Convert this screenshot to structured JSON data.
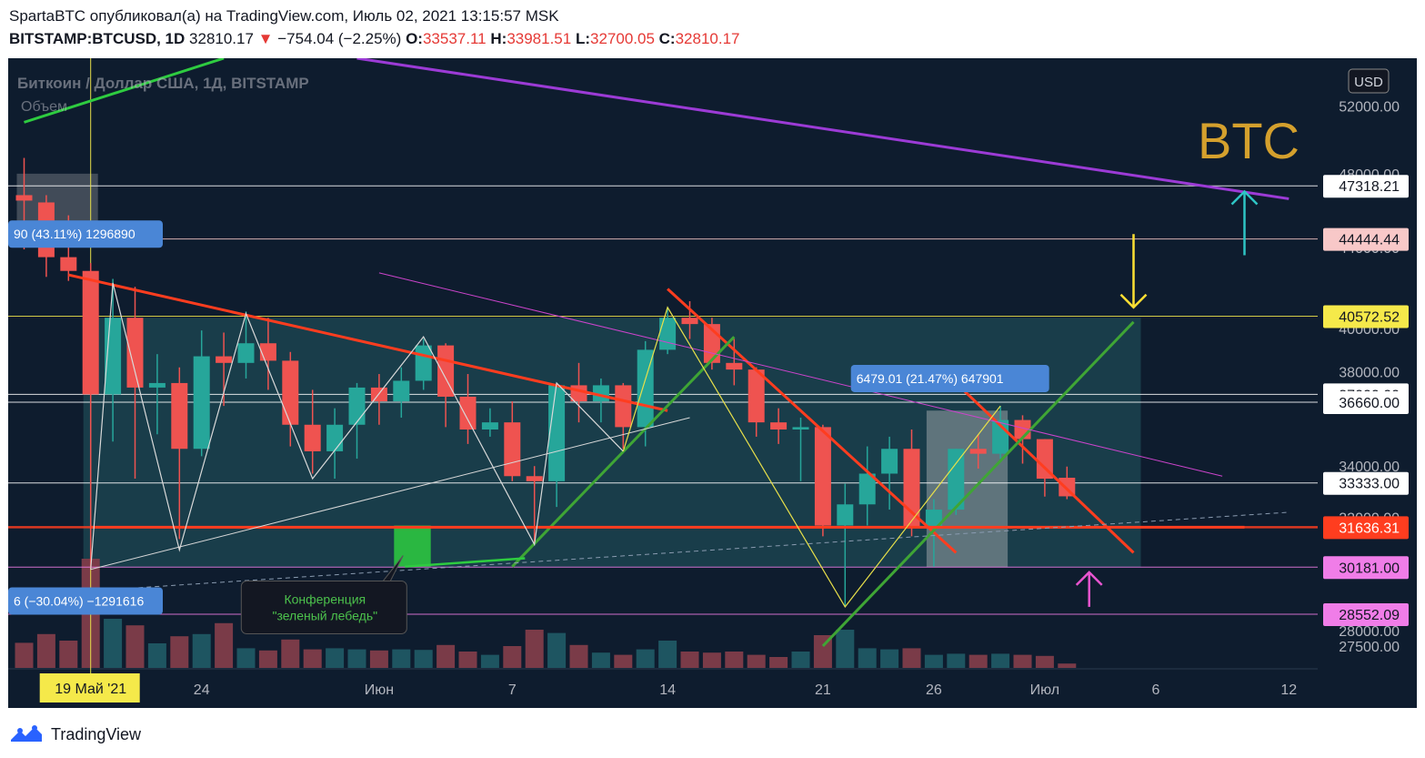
{
  "header": {
    "line1": "SpartaBTC опубликовал(а) на TradingView.com, Июль 02, 2021 13:15:57 MSK",
    "symbol": "BITSTAMP:BTCUSD, 1D",
    "last": "32810.17",
    "change_arrow": "▼",
    "change": "−754.04 (−2.25%)",
    "o_label": "O:",
    "o_value": "33537.11",
    "h_label": "H:",
    "h_value": "33981.51",
    "l_label": "L:",
    "l_value": "32700.05",
    "c_label": "C:",
    "c_value": "32810.17"
  },
  "footer": {
    "brand": "TradingView"
  },
  "colors": {
    "background": "#0e1c2e",
    "up": "#26a69a",
    "down": "#ef5350",
    "volume_up": "#1e5561",
    "volume_down": "#7a3b48"
  },
  "chart_data": {
    "type": "candlestick",
    "title": "Биткоин / Доллар США, 1Д, BITSTAMP",
    "subtitle": "Объем",
    "watermark": "BTC",
    "currency": "USD",
    "y_scale": "log",
    "ylim": [
      26800,
      55000
    ],
    "y_ticks": [
      27500,
      28000,
      32000,
      34000,
      38000,
      40000,
      44000,
      48000,
      52000
    ],
    "y_tick_labels": [
      "27500.00",
      "28000.00",
      "32000.00",
      "34000.00",
      "38000.00",
      "40000.00",
      "44000.00",
      "48000.00",
      "52000.00"
    ],
    "x_tick_labels": [
      {
        "day": "May 24",
        "label": "24"
      },
      {
        "day": "Jun 1",
        "label": "Июн"
      },
      {
        "day": "Jun 7",
        "label": "7"
      },
      {
        "day": "Jun 14",
        "label": "14"
      },
      {
        "day": "Jun 21",
        "label": "21"
      },
      {
        "day": "Jun 26",
        "label": "26"
      },
      {
        "day": "Jul 1",
        "label": "Июл"
      },
      {
        "day": "Jul 6",
        "label": "6"
      },
      {
        "day": "Jul 12",
        "label": "12"
      }
    ],
    "crosshair_label": {
      "day": "May 19",
      "label": "19 Май '21"
    },
    "candles": [
      {
        "day": "May 16",
        "o": 46800,
        "h": 48900,
        "l": 43900,
        "c": 46500
      },
      {
        "day": "May 17",
        "o": 46400,
        "h": 46800,
        "l": 42500,
        "c": 43500
      },
      {
        "day": "May 18",
        "o": 43500,
        "h": 45700,
        "l": 42300,
        "c": 42800
      },
      {
        "day": "May 19",
        "o": 42800,
        "h": 43200,
        "l": 30100,
        "c": 37000
      },
      {
        "day": "May 20",
        "o": 37000,
        "h": 42400,
        "l": 35000,
        "c": 40500
      },
      {
        "day": "May 21",
        "o": 40500,
        "h": 42000,
        "l": 33500,
        "c": 37300
      },
      {
        "day": "May 22",
        "o": 37300,
        "h": 38800,
        "l": 35300,
        "c": 37500
      },
      {
        "day": "May 23",
        "o": 37500,
        "h": 38200,
        "l": 31200,
        "c": 34700
      },
      {
        "day": "May 24",
        "o": 34700,
        "h": 39900,
        "l": 34400,
        "c": 38700
      },
      {
        "day": "May 25",
        "o": 38700,
        "h": 39800,
        "l": 36500,
        "c": 38400
      },
      {
        "day": "May 26",
        "o": 38400,
        "h": 40800,
        "l": 37700,
        "c": 39300
      },
      {
        "day": "May 27",
        "o": 39300,
        "h": 40500,
        "l": 37200,
        "c": 38500
      },
      {
        "day": "May 28",
        "o": 38500,
        "h": 38900,
        "l": 34800,
        "c": 35700
      },
      {
        "day": "May 29",
        "o": 35700,
        "h": 37200,
        "l": 33700,
        "c": 34600
      },
      {
        "day": "May 30",
        "o": 34600,
        "h": 36400,
        "l": 33500,
        "c": 35700
      },
      {
        "day": "May 31",
        "o": 35700,
        "h": 37500,
        "l": 34300,
        "c": 37300
      },
      {
        "day": "Jun 1",
        "o": 37300,
        "h": 37900,
        "l": 35700,
        "c": 36700
      },
      {
        "day": "Jun 2",
        "o": 36700,
        "h": 38200,
        "l": 36000,
        "c": 37600
      },
      {
        "day": "Jun 3",
        "o": 37600,
        "h": 39500,
        "l": 37200,
        "c": 39200
      },
      {
        "day": "Jun 4",
        "o": 39200,
        "h": 39300,
        "l": 35600,
        "c": 36900
      },
      {
        "day": "Jun 5",
        "o": 36900,
        "h": 37900,
        "l": 34900,
        "c": 35500
      },
      {
        "day": "Jun 6",
        "o": 35500,
        "h": 36400,
        "l": 35200,
        "c": 35800
      },
      {
        "day": "Jun 7",
        "o": 35800,
        "h": 36700,
        "l": 33400,
        "c": 33600
      },
      {
        "day": "Jun 8",
        "o": 33600,
        "h": 34000,
        "l": 31000,
        "c": 33400
      },
      {
        "day": "Jun 9",
        "o": 33400,
        "h": 37500,
        "l": 32400,
        "c": 37400
      },
      {
        "day": "Jun 10",
        "o": 37400,
        "h": 38400,
        "l": 35800,
        "c": 36700
      },
      {
        "day": "Jun 11",
        "o": 36700,
        "h": 37700,
        "l": 35800,
        "c": 37400
      },
      {
        "day": "Jun 12",
        "o": 37400,
        "h": 37500,
        "l": 34700,
        "c": 35600
      },
      {
        "day": "Jun 13",
        "o": 35600,
        "h": 39400,
        "l": 34800,
        "c": 39000
      },
      {
        "day": "Jun 14",
        "o": 39000,
        "h": 41000,
        "l": 38800,
        "c": 40500
      },
      {
        "day": "Jun 15",
        "o": 40500,
        "h": 41300,
        "l": 39500,
        "c": 40200
      },
      {
        "day": "Jun 16",
        "o": 40200,
        "h": 40500,
        "l": 38100,
        "c": 38400
      },
      {
        "day": "Jun 17",
        "o": 38400,
        "h": 39500,
        "l": 37400,
        "c": 38100
      },
      {
        "day": "Jun 18",
        "o": 38100,
        "h": 38200,
        "l": 35200,
        "c": 35800
      },
      {
        "day": "Jun 19",
        "o": 35800,
        "h": 36400,
        "l": 34900,
        "c": 35500
      },
      {
        "day": "Jun 20",
        "o": 35500,
        "h": 36000,
        "l": 33400,
        "c": 35600
      },
      {
        "day": "Jun 21",
        "o": 35600,
        "h": 35700,
        "l": 31300,
        "c": 31700
      },
      {
        "day": "Jun 22",
        "o": 31700,
        "h": 33300,
        "l": 28800,
        "c": 32500
      },
      {
        "day": "Jun 23",
        "o": 32500,
        "h": 34800,
        "l": 31700,
        "c": 33700
      },
      {
        "day": "Jun 24",
        "o": 33700,
        "h": 35200,
        "l": 32300,
        "c": 34700
      },
      {
        "day": "Jun 25",
        "o": 34700,
        "h": 35500,
        "l": 31300,
        "c": 31600
      },
      {
        "day": "Jun 26",
        "o": 31600,
        "h": 32700,
        "l": 30200,
        "c": 32300
      },
      {
        "day": "Jun 27",
        "o": 32300,
        "h": 34700,
        "l": 32100,
        "c": 34700
      },
      {
        "day": "Jun 28",
        "o": 34700,
        "h": 35300,
        "l": 33900,
        "c": 34500
      },
      {
        "day": "Jun 29",
        "o": 34500,
        "h": 36500,
        "l": 34300,
        "c": 35900
      },
      {
        "day": "Jun 30",
        "o": 35900,
        "h": 36100,
        "l": 34100,
        "c": 35100
      },
      {
        "day": "Jul 1",
        "o": 35100,
        "h": 35100,
        "l": 32800,
        "c": 33500
      },
      {
        "day": "Jul 2",
        "o": 33537.11,
        "h": 33981.51,
        "l": 32700.05,
        "c": 32810.17
      }
    ],
    "volume_relative": [
      0.46,
      0.62,
      0.5,
      2.5,
      0.9,
      0.78,
      0.45,
      0.58,
      0.62,
      0.82,
      0.36,
      0.32,
      0.52,
      0.34,
      0.36,
      0.34,
      0.32,
      0.34,
      0.33,
      0.42,
      0.3,
      0.24,
      0.4,
      0.7,
      0.64,
      0.42,
      0.28,
      0.24,
      0.34,
      0.5,
      0.3,
      0.28,
      0.3,
      0.24,
      0.2,
      0.3,
      0.6,
      0.7,
      0.36,
      0.34,
      0.36,
      0.24,
      0.26,
      0.24,
      0.26,
      0.24,
      0.22,
      0.08
    ],
    "price_levels": [
      {
        "value": 47318.21,
        "label": "47318.21",
        "color": "#ffffff",
        "text_color": "#131722"
      },
      {
        "value": 44444.44,
        "label": "44444.44",
        "color": "#f8c8c8",
        "text_color": "#131722"
      },
      {
        "value": 40572.52,
        "label": "40572.52",
        "color": "#f5e94a",
        "text_color": "#131722"
      },
      {
        "value": 37000.0,
        "label": "37000.00",
        "color": "#ffffff",
        "text_color": "#131722"
      },
      {
        "value": 36660.0,
        "label": "36660.00",
        "color": "#ffffff",
        "text_color": "#131722"
      },
      {
        "value": 33333.0,
        "label": "33333.00",
        "color": "#ffffff",
        "text_color": "#131722"
      },
      {
        "value": 31636.31,
        "label": "31636.31",
        "color": "#ff3d1f",
        "text_color": "#ffffff"
      },
      {
        "value": 30181.0,
        "label": "30181.00",
        "color": "#f07de8",
        "text_color": "#131722"
      },
      {
        "value": 28552.09,
        "label": "28552.09",
        "color": "#f07de8",
        "text_color": "#131722"
      }
    ],
    "measure_labels": [
      {
        "text": "90 (43.11%) 1296890",
        "day": "May 16",
        "price": 44700
      },
      {
        "text": "6 (−30.04%) −1291616",
        "day": "May 16",
        "price": 29000
      },
      {
        "text": "6479.01 (21.47%) 647901",
        "day": "Jun 28",
        "price": 37700
      }
    ],
    "annotations": [
      {
        "text": "Конференция",
        "day": "Jun 2",
        "price": 29000
      },
      {
        "text": "\"зеленый лебедь\"",
        "day": "Jun 2",
        "price": 28650
      }
    ],
    "trendlines": [
      {
        "color": "#9c3bd6",
        "width": 3,
        "from": {
          "day": "May 31",
          "price": 55000
        },
        "to": {
          "day": "Jul 12",
          "price": 46600
        }
      },
      {
        "color": "#2ecc40",
        "width": 3,
        "from": {
          "day": "May 16",
          "price": 51000
        },
        "to": {
          "day": "May 25",
          "price": 55000
        }
      },
      {
        "color": "#ff3d1f",
        "width": 3,
        "from": {
          "day": "May 18",
          "price": 42600
        },
        "to": {
          "day": "Jun 14",
          "price": 36300
        }
      },
      {
        "color": "#ff3d1f",
        "width": 3,
        "from": {
          "day": "Jun 14",
          "price": 41900
        },
        "to": {
          "day": "Jun 27",
          "price": 30700
        }
      },
      {
        "color": "#ff3d1f",
        "width": 3,
        "from": {
          "day": "Jun 27",
          "price": 37500
        },
        "to": {
          "day": "Jul 5",
          "price": 30700
        }
      },
      {
        "color": "#3fa535",
        "width": 3,
        "from": {
          "day": "Jun 7",
          "price": 30200
        },
        "to": {
          "day": "Jun 17",
          "price": 39600
        }
      },
      {
        "color": "#3fa535",
        "width": 3,
        "from": {
          "day": "Jun 21",
          "price": 27500
        },
        "to": {
          "day": "Jul 5",
          "price": 40300
        }
      },
      {
        "color": "#cc44cc",
        "width": 1,
        "from": {
          "day": "Jun 1",
          "price": 42700
        },
        "to": {
          "day": "Jul 9",
          "price": 33600
        }
      },
      {
        "color": "#ff3d1f",
        "width": 3,
        "from": {
          "day": "May 19",
          "price": 31636.31
        },
        "to": {
          "day": "Jul 10",
          "price": 31636.31
        }
      },
      {
        "color": "#d9d9d9",
        "width": 1,
        "from": {
          "day": "May 19",
          "price": 30100
        },
        "to": {
          "day": "Jun 15",
          "price": 36000
        }
      },
      {
        "color": "#8a9bb0",
        "width": 1,
        "dash": true,
        "from": {
          "day": "May 16",
          "price": 29200
        },
        "to": {
          "day": "Jul 12",
          "price": 32200
        }
      }
    ],
    "zigzags": [
      {
        "color": "#d9d9d9",
        "points": [
          [
            "May 19",
            30100
          ],
          [
            "May 20",
            42200
          ],
          [
            "May 23",
            30800
          ],
          [
            "May 26",
            40700
          ],
          [
            "May 29",
            33500
          ],
          [
            "Jun 3",
            39600
          ],
          [
            "Jun 8",
            31000
          ],
          [
            "Jun 9",
            37500
          ],
          [
            "Jun 12",
            34600
          ]
        ]
      },
      {
        "color": "#e8e04a",
        "points": [
          [
            "Jun 12",
            34600
          ],
          [
            "Jun 14",
            41000
          ],
          [
            "Jun 22",
            28800
          ],
          [
            "Jun 29",
            36500
          ]
        ]
      }
    ],
    "rectangles": [
      {
        "color": "#3aa0a0",
        "opacity": 0.25,
        "from": {
          "day": "May 19",
          "price": 40500
        },
        "to": {
          "day": "Jul 5",
          "price": 30181
        }
      },
      {
        "color": "#c8c8c8",
        "opacity": 0.4,
        "from": {
          "day": "Jun 26",
          "price": 36300
        },
        "to": {
          "day": "Jun 29",
          "price": 30181
        }
      },
      {
        "color": "#bbbbbb",
        "opacity": 0.3,
        "from": {
          "day": "May 16",
          "price": 48000
        },
        "to": {
          "day": "May 19",
          "price": 44700
        }
      },
      {
        "color": "#2ecc40",
        "opacity": 0.85,
        "from": {
          "day": "Jun 2",
          "price": 31700
        },
        "to": {
          "day": "Jun 3",
          "price": 30200
        }
      }
    ],
    "arrows": [
      {
        "color": "#2ec4c4",
        "day": "Jul 10",
        "from_price": 43600,
        "to_price": 47000
      },
      {
        "color": "#ffe033",
        "day": "Jul 5",
        "from_price": 44700,
        "to_price": 41000
      },
      {
        "color": "#e855d0",
        "day": "Jul 3",
        "from_price": 28800,
        "to_price": 30000
      }
    ]
  }
}
